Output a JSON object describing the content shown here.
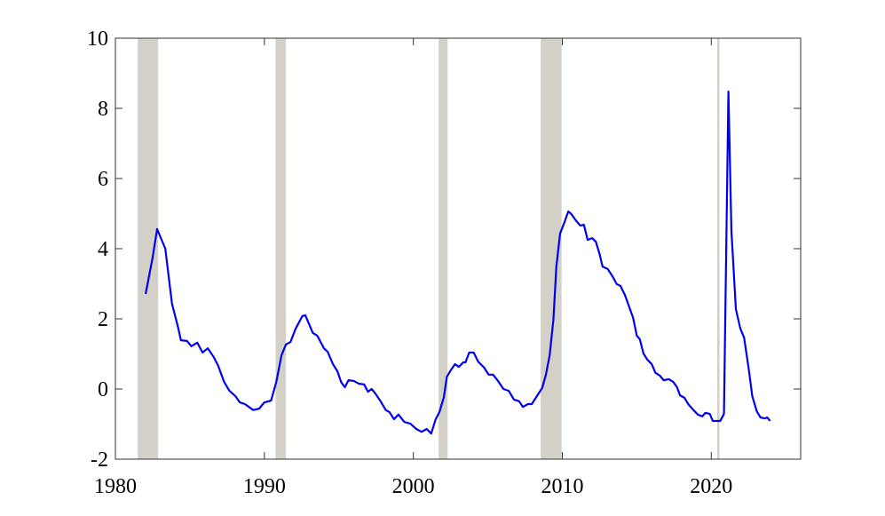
{
  "chart_data": {
    "type": "line",
    "x": [
      1982.03,
      1982.5,
      1982.8,
      1983.35,
      1983.8,
      1984.2,
      1984.4,
      1984.8,
      1985.1,
      1985.5,
      1985.85,
      1986.2,
      1986.6,
      1986.9,
      1987.3,
      1987.65,
      1988.05,
      1988.35,
      1988.7,
      1989.25,
      1989.65,
      1990.0,
      1990.45,
      1990.8,
      1991.15,
      1991.45,
      1991.75,
      1992.1,
      1992.55,
      1992.75,
      1993.25,
      1993.55,
      1994.0,
      1994.25,
      1994.6,
      1994.9,
      1995.15,
      1995.4,
      1995.65,
      1996.0,
      1996.35,
      1996.7,
      1996.95,
      1997.2,
      1997.45,
      1997.8,
      1998.15,
      1998.4,
      1998.7,
      1999.0,
      1999.4,
      1999.8,
      2000.2,
      2000.55,
      2000.9,
      2001.2,
      2001.5,
      2001.75,
      2002.05,
      2002.25,
      2002.55,
      2002.8,
      2003.05,
      2003.35,
      2003.5,
      2003.75,
      2004.05,
      2004.35,
      2004.75,
      2005.05,
      2005.35,
      2005.65,
      2006.05,
      2006.4,
      2006.75,
      2007.1,
      2007.35,
      2007.7,
      2007.95,
      2008.3,
      2008.65,
      2008.9,
      2009.15,
      2009.4,
      2009.6,
      2009.85,
      2010.15,
      2010.4,
      2010.6,
      2010.9,
      2011.2,
      2011.45,
      2011.7,
      2012.0,
      2012.25,
      2012.5,
      2012.7,
      2013.05,
      2013.4,
      2013.65,
      2013.9,
      2014.2,
      2014.5,
      2014.75,
      2015.0,
      2015.2,
      2015.45,
      2015.7,
      2016.0,
      2016.25,
      2016.55,
      2016.8,
      2017.15,
      2017.45,
      2017.7,
      2017.9,
      2018.2,
      2018.45,
      2018.8,
      2019.1,
      2019.4,
      2019.6,
      2019.9,
      2020.1,
      2020.6,
      2020.85,
      2021.15,
      2021.35,
      2021.65,
      2021.95,
      2022.2,
      2022.5,
      2022.75,
      2023.05,
      2023.3,
      2023.6,
      2023.75,
      2023.95
    ],
    "values": [
      2.71,
      3.75,
      4.56,
      4.0,
      2.43,
      1.77,
      1.39,
      1.37,
      1.22,
      1.32,
      1.04,
      1.16,
      0.91,
      0.66,
      0.2,
      -0.05,
      -0.2,
      -0.38,
      -0.43,
      -0.6,
      -0.56,
      -0.38,
      -0.33,
      0.2,
      0.96,
      1.27,
      1.34,
      1.72,
      2.08,
      2.1,
      1.6,
      1.52,
      1.16,
      1.06,
      0.71,
      0.51,
      0.2,
      0.05,
      0.25,
      0.23,
      0.15,
      0.13,
      -0.08,
      0.0,
      -0.13,
      -0.35,
      -0.6,
      -0.66,
      -0.86,
      -0.73,
      -0.94,
      -0.99,
      -1.14,
      -1.22,
      -1.14,
      -1.27,
      -0.86,
      -0.66,
      -0.23,
      0.35,
      0.56,
      0.71,
      0.63,
      0.76,
      0.76,
      1.04,
      1.04,
      0.78,
      0.61,
      0.41,
      0.41,
      0.25,
      0.0,
      -0.05,
      -0.3,
      -0.35,
      -0.51,
      -0.43,
      -0.43,
      -0.2,
      0.03,
      0.41,
      0.96,
      1.97,
      3.49,
      4.43,
      4.76,
      5.06,
      4.99,
      4.81,
      4.66,
      4.68,
      4.25,
      4.3,
      4.2,
      3.85,
      3.49,
      3.42,
      3.19,
      2.99,
      2.94,
      2.68,
      2.33,
      2.03,
      1.52,
      1.42,
      1.01,
      0.84,
      0.71,
      0.46,
      0.38,
      0.25,
      0.28,
      0.2,
      0.05,
      -0.18,
      -0.25,
      -0.43,
      -0.6,
      -0.73,
      -0.78,
      -0.68,
      -0.71,
      -0.91,
      -0.91,
      -0.71,
      8.48,
      4.51,
      2.28,
      1.72,
      1.47,
      0.61,
      -0.2,
      -0.63,
      -0.81,
      -0.84,
      -0.81,
      -0.91
    ],
    "color": "#0000ee",
    "shaded_periods": [
      [
        1981.5,
        1982.87
      ],
      [
        1990.75,
        1991.45
      ],
      [
        2001.7,
        2002.3
      ],
      [
        2008.55,
        2009.95
      ],
      [
        2020.4,
        2020.55
      ]
    ],
    "shade_color": "#d3d0c8",
    "xlim": [
      1980,
      2026
    ],
    "xticks": [
      1980,
      1990,
      2000,
      2010,
      2020
    ],
    "ylim": [
      -2,
      10
    ],
    "yticks": [
      -2,
      0,
      2,
      4,
      6,
      8,
      10
    ]
  }
}
